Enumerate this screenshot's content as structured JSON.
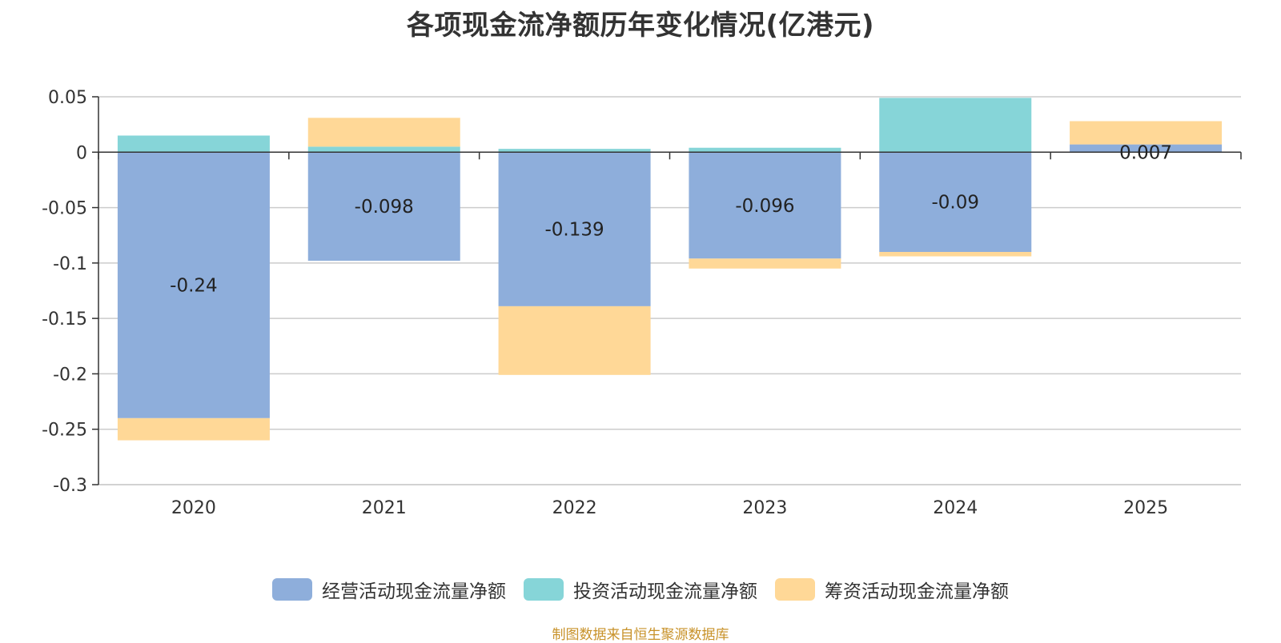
{
  "title": "各项现金流净额历年变化情况(亿港元)",
  "source": "制图数据来自恒生聚源数据库",
  "colors": {
    "operating": "#8eaedb",
    "investing": "#86d5d8",
    "financing": "#ffd897"
  },
  "chart_data": {
    "type": "bar",
    "stacked": true,
    "title": "各项现金流净额历年变化情况(亿港元)",
    "categories": [
      "2020",
      "2021",
      "2022",
      "2023",
      "2024",
      "2025"
    ],
    "series": [
      {
        "name": "经营活动现金流量净额",
        "values": [
          -0.24,
          -0.098,
          -0.139,
          -0.096,
          -0.09,
          0.007
        ]
      },
      {
        "name": "投资活动现金流量净额",
        "values": [
          0.015,
          0.005,
          0.003,
          0.004,
          0.049,
          0
        ]
      },
      {
        "name": "筹资活动现金流量净额",
        "values": [
          -0.02,
          0.026,
          -0.062,
          -0.009,
          -0.004,
          0.021
        ]
      }
    ],
    "data_labels": [
      "-0.24",
      "-0.098",
      "-0.139",
      "-0.096",
      "-0.09",
      "0.007"
    ],
    "yticks": [
      "0.05",
      "0",
      "-0.05",
      "-0.1",
      "-0.15",
      "-0.2",
      "-0.25",
      "-0.3"
    ],
    "ylim": [
      -0.3,
      0.05
    ],
    "grid": true,
    "legend_position": "bottom"
  }
}
